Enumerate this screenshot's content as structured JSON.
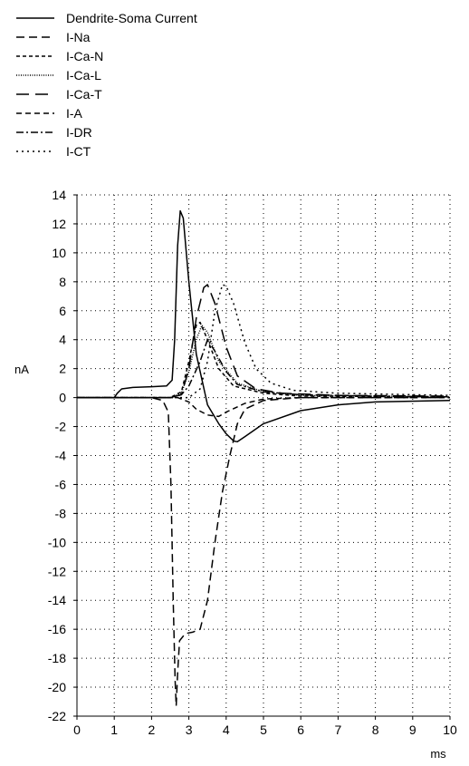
{
  "chart_data": {
    "type": "line",
    "title": "",
    "xlabel": "ms",
    "ylabel": "nA",
    "xlim": [
      0,
      10
    ],
    "ylim": [
      -22,
      14
    ],
    "x_ticks": [
      0,
      1,
      2,
      3,
      4,
      5,
      6,
      7,
      8,
      9,
      10
    ],
    "y_ticks": [
      14,
      12,
      10,
      8,
      6,
      4,
      2,
      0,
      -2,
      -4,
      -6,
      -8,
      -10,
      -12,
      -14,
      -16,
      -18,
      -20,
      -22
    ],
    "grid": true,
    "legend_position": "top-left",
    "series": [
      {
        "name": "Dendrite-Soma Current",
        "dash": "solid",
        "points": [
          [
            0,
            0
          ],
          [
            1.0,
            0
          ],
          [
            1.08,
            0.3
          ],
          [
            1.2,
            0.6
          ],
          [
            1.5,
            0.7
          ],
          [
            2.0,
            0.75
          ],
          [
            2.4,
            0.8
          ],
          [
            2.55,
            1.2
          ],
          [
            2.62,
            4.0
          ],
          [
            2.7,
            10.5
          ],
          [
            2.77,
            12.9
          ],
          [
            2.85,
            12.4
          ],
          [
            3.0,
            8.0
          ],
          [
            3.2,
            3.0
          ],
          [
            3.5,
            -0.5
          ],
          [
            3.8,
            -1.8
          ],
          [
            4.0,
            -2.5
          ],
          [
            4.2,
            -3.0
          ],
          [
            4.3,
            -3.05
          ],
          [
            4.5,
            -2.7
          ],
          [
            5.0,
            -1.8
          ],
          [
            6.0,
            -0.9
          ],
          [
            7.0,
            -0.5
          ],
          [
            8.0,
            -0.3
          ],
          [
            10.0,
            -0.2
          ]
        ]
      },
      {
        "name": "I-Na",
        "dash": "long-dash",
        "points": [
          [
            0,
            0
          ],
          [
            2.0,
            0
          ],
          [
            2.3,
            -0.2
          ],
          [
            2.45,
            -1.0
          ],
          [
            2.52,
            -6.0
          ],
          [
            2.58,
            -14.0
          ],
          [
            2.63,
            -19.5
          ],
          [
            2.66,
            -21.3
          ],
          [
            2.7,
            -19.0
          ],
          [
            2.75,
            -16.8
          ],
          [
            2.9,
            -16.3
          ],
          [
            3.1,
            -16.2
          ],
          [
            3.3,
            -16.0
          ],
          [
            3.5,
            -14.0
          ],
          [
            3.7,
            -10.0
          ],
          [
            3.9,
            -6.5
          ],
          [
            4.1,
            -4.0
          ],
          [
            4.3,
            -1.8
          ],
          [
            4.5,
            -0.8
          ],
          [
            5.0,
            -0.2
          ],
          [
            6.0,
            0
          ],
          [
            10.0,
            0
          ]
        ]
      },
      {
        "name": "I-Ca-N",
        "dash": "short-dash",
        "points": [
          [
            0,
            0
          ],
          [
            2.5,
            0
          ],
          [
            2.8,
            0.4
          ],
          [
            3.0,
            2.5
          ],
          [
            3.2,
            5.0
          ],
          [
            3.3,
            5.2
          ],
          [
            3.5,
            4.0
          ],
          [
            3.8,
            2.0
          ],
          [
            4.2,
            0.8
          ],
          [
            5.0,
            0.3
          ],
          [
            6.0,
            0.1
          ],
          [
            10.0,
            0.05
          ]
        ]
      },
      {
        "name": "I-Ca-L",
        "dash": "fine-dot",
        "points": [
          [
            0,
            0
          ],
          [
            2.5,
            0
          ],
          [
            2.8,
            0.3
          ],
          [
            3.0,
            1.8
          ],
          [
            3.2,
            4.0
          ],
          [
            3.35,
            5.0
          ],
          [
            3.5,
            4.5
          ],
          [
            3.8,
            2.5
          ],
          [
            4.3,
            1.0
          ],
          [
            5.0,
            0.4
          ],
          [
            6.0,
            0.15
          ],
          [
            10.0,
            0.05
          ]
        ]
      },
      {
        "name": "I-Ca-T",
        "dash": "very-long-dash",
        "points": [
          [
            0,
            0
          ],
          [
            2.5,
            0
          ],
          [
            2.8,
            0.2
          ],
          [
            3.0,
            2.0
          ],
          [
            3.2,
            5.5
          ],
          [
            3.4,
            7.6
          ],
          [
            3.5,
            7.8
          ],
          [
            3.7,
            6.5
          ],
          [
            4.0,
            3.5
          ],
          [
            4.3,
            1.5
          ],
          [
            4.8,
            0.6
          ],
          [
            5.5,
            0.3
          ],
          [
            7.0,
            0.15
          ],
          [
            10.0,
            0.1
          ]
        ]
      },
      {
        "name": "I-A",
        "dash": "medium-dash",
        "points": [
          [
            0,
            0
          ],
          [
            2.7,
            0
          ],
          [
            3.0,
            -0.3
          ],
          [
            3.2,
            -0.8
          ],
          [
            3.5,
            -1.2
          ],
          [
            3.8,
            -1.3
          ],
          [
            4.0,
            -1.0
          ],
          [
            4.5,
            -0.4
          ],
          [
            5.0,
            -0.1
          ],
          [
            6.0,
            0
          ],
          [
            10.0,
            0
          ]
        ]
      },
      {
        "name": "I-DR",
        "dash": "dash-dot",
        "points": [
          [
            0,
            0
          ],
          [
            2.5,
            0
          ],
          [
            2.8,
            0.2
          ],
          [
            3.0,
            0.8
          ],
          [
            3.3,
            2.5
          ],
          [
            3.5,
            4.0
          ],
          [
            3.7,
            3.2
          ],
          [
            4.0,
            1.8
          ],
          [
            4.3,
            0.9
          ],
          [
            5.0,
            0.4
          ],
          [
            6.0,
            0.2
          ],
          [
            8.0,
            0.1
          ],
          [
            10.0,
            0.05
          ]
        ]
      },
      {
        "name": "I-CT",
        "dash": "dotted",
        "points": [
          [
            0,
            0
          ],
          [
            3.0,
            0
          ],
          [
            3.3,
            0.6
          ],
          [
            3.5,
            2.5
          ],
          [
            3.7,
            6.0
          ],
          [
            3.9,
            7.8
          ],
          [
            4.0,
            7.7
          ],
          [
            4.2,
            6.5
          ],
          [
            4.5,
            3.8
          ],
          [
            4.8,
            2.0
          ],
          [
            5.2,
            1.0
          ],
          [
            5.8,
            0.5
          ],
          [
            7.0,
            0.3
          ],
          [
            10.0,
            0.15
          ]
        ]
      }
    ]
  }
}
